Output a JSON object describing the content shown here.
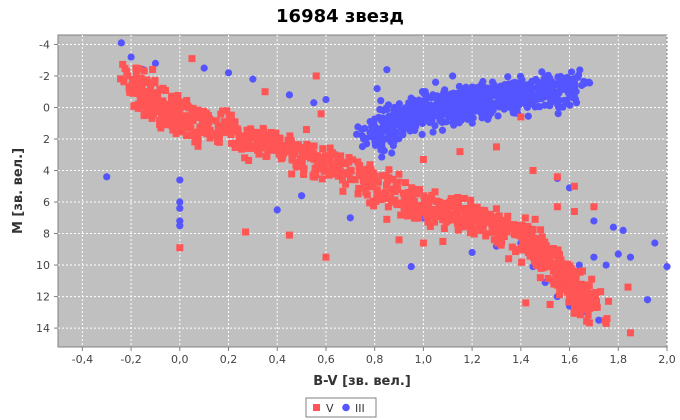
{
  "chart_data": {
    "type": "scatter",
    "title": "16984 звезд",
    "xlabel": "B-V [зв. вел.]",
    "ylabel": "M [зв. вел.]",
    "xlim": [
      -0.5,
      2.0
    ],
    "ylim": [
      15.2,
      -4.6
    ],
    "y_inverted": true,
    "grid": true,
    "legend_position": "bottom-center",
    "x_ticks": [
      "-0,4",
      "-0,2",
      "0,0",
      "0,2",
      "0,4",
      "0,6",
      "0,8",
      "1,0",
      "1,2",
      "1,4",
      "1,6",
      "1,8",
      "2,0"
    ],
    "y_ticks": [
      "-4",
      "-2",
      "0",
      "2",
      "4",
      "6",
      "8",
      "10",
      "12",
      "14"
    ],
    "series": [
      {
        "name": "V",
        "marker": "square",
        "color": "#ff5555",
        "trend": [
          [
            -0.2,
            -1.8
          ],
          [
            -0.1,
            0.0
          ],
          [
            0.0,
            0.6
          ],
          [
            0.2,
            1.6
          ],
          [
            0.4,
            2.6
          ],
          [
            0.6,
            3.5
          ],
          [
            0.8,
            5.0
          ],
          [
            1.0,
            6.3
          ],
          [
            1.2,
            7.0
          ],
          [
            1.4,
            8.1
          ],
          [
            1.5,
            9.6
          ],
          [
            1.6,
            11.4
          ],
          [
            1.7,
            12.6
          ]
        ],
        "points": [
          [
            -0.18,
            -2.5
          ],
          [
            -0.12,
            -1.3
          ],
          [
            0.05,
            -3.1
          ],
          [
            0.35,
            -1.0
          ],
          [
            0.58,
            0.4
          ],
          [
            0.52,
            1.4
          ],
          [
            0.56,
            -2.0
          ],
          [
            1.0,
            3.3
          ],
          [
            1.15,
            2.8
          ],
          [
            1.3,
            2.5
          ],
          [
            1.4,
            0.6
          ],
          [
            1.45,
            4.0
          ],
          [
            1.55,
            4.4
          ],
          [
            1.62,
            5.0
          ],
          [
            1.7,
            6.3
          ],
          [
            1.62,
            6.6
          ],
          [
            1.55,
            6.3
          ],
          [
            0.0,
            8.9
          ],
          [
            0.27,
            7.9
          ],
          [
            0.45,
            8.1
          ],
          [
            0.6,
            9.5
          ],
          [
            0.9,
            8.4
          ],
          [
            1.0,
            8.6
          ],
          [
            1.08,
            8.5
          ],
          [
            1.35,
            9.6
          ],
          [
            1.48,
            10.8
          ],
          [
            1.52,
            12.5
          ],
          [
            1.6,
            12.0
          ],
          [
            1.62,
            12.8
          ],
          [
            1.7,
            11.9
          ],
          [
            1.75,
            13.7
          ],
          [
            1.76,
            12.3
          ],
          [
            1.85,
            14.3
          ],
          [
            1.84,
            11.4
          ],
          [
            1.58,
            11.5
          ],
          [
            1.42,
            12.4
          ],
          [
            0.85,
            7.1
          ],
          [
            1.18,
            6.8
          ]
        ]
      },
      {
        "name": "III",
        "marker": "circle",
        "color": "#5555ff",
        "trend": [
          [
            0.8,
            1.8
          ],
          [
            0.9,
            0.8
          ],
          [
            1.0,
            0.3
          ],
          [
            1.1,
            0.0
          ],
          [
            1.2,
            -0.3
          ],
          [
            1.3,
            -0.6
          ],
          [
            1.4,
            -0.8
          ],
          [
            1.5,
            -1.0
          ],
          [
            1.6,
            -1.2
          ]
        ],
        "points": [
          [
            -0.24,
            -4.1
          ],
          [
            -0.2,
            -3.2
          ],
          [
            -0.15,
            -2.4
          ],
          [
            -0.1,
            -2.8
          ],
          [
            0.1,
            -2.5
          ],
          [
            0.2,
            -2.2
          ],
          [
            0.3,
            -1.8
          ],
          [
            0.45,
            -0.8
          ],
          [
            0.6,
            -0.5
          ],
          [
            -0.3,
            4.4
          ],
          [
            0.0,
            4.6
          ],
          [
            0.0,
            6.0
          ],
          [
            0.0,
            6.4
          ],
          [
            0.0,
            7.2
          ],
          [
            0.0,
            7.5
          ],
          [
            0.4,
            6.5
          ],
          [
            0.5,
            5.6
          ],
          [
            0.7,
            7.0
          ],
          [
            0.95,
            10.1
          ],
          [
            1.0,
            7.0
          ],
          [
            1.2,
            9.2
          ],
          [
            1.3,
            8.8
          ],
          [
            1.4,
            8.6
          ],
          [
            1.45,
            10.1
          ],
          [
            1.5,
            11.1
          ],
          [
            1.55,
            12.0
          ],
          [
            1.6,
            12.6
          ],
          [
            1.65,
            13.0
          ],
          [
            1.7,
            9.5
          ],
          [
            1.75,
            10.0
          ],
          [
            1.8,
            9.3
          ],
          [
            1.85,
            9.5
          ],
          [
            1.92,
            12.2
          ],
          [
            1.95,
            8.6
          ],
          [
            2.0,
            10.1
          ],
          [
            1.82,
            7.8
          ],
          [
            1.78,
            7.6
          ],
          [
            1.7,
            7.2
          ],
          [
            1.72,
            13.5
          ],
          [
            1.64,
            10.0
          ],
          [
            1.6,
            5.1
          ],
          [
            1.55,
            4.5
          ],
          [
            0.81,
            -1.2
          ],
          [
            0.85,
            -2.4
          ],
          [
            1.05,
            -1.6
          ],
          [
            1.12,
            -2.0
          ],
          [
            1.2,
            -1.3
          ],
          [
            1.65,
            -1.4
          ],
          [
            1.68,
            -1.6
          ],
          [
            0.55,
            -0.3
          ]
        ]
      }
    ]
  }
}
